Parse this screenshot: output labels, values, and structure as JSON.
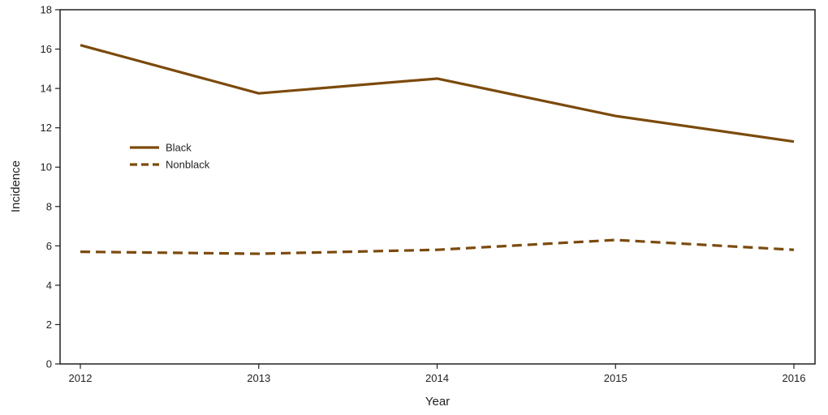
{
  "chart_data": {
    "type": "line",
    "title": "",
    "xlabel": "Year",
    "ylabel": "Incidence",
    "categories": [
      "2012",
      "2013",
      "2014",
      "2015",
      "2016"
    ],
    "ylim": [
      0,
      18
    ],
    "yticks": [
      0,
      2,
      4,
      6,
      8,
      10,
      12,
      14,
      16,
      18
    ],
    "grid": false,
    "legend_position": "left",
    "series": [
      {
        "name": "Black",
        "values": [
          16.2,
          13.75,
          14.5,
          12.6,
          11.3
        ],
        "line_style": "solid",
        "color": "#7b4a0c"
      },
      {
        "name": "Nonblack",
        "values": [
          5.7,
          5.6,
          5.8,
          6.3,
          5.8
        ],
        "line_style": "dashed",
        "color": "#7b4a0c"
      }
    ]
  }
}
